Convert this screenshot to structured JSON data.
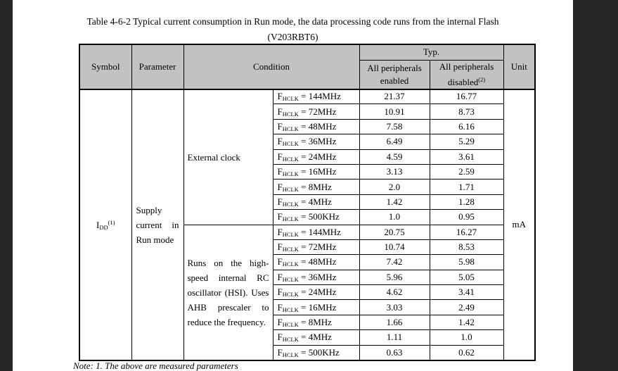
{
  "page": {
    "title_line1": "Table 4-6-2 Typical current consumption in Run mode, the data processing code runs from the internal Flash",
    "title_line2": "(V203RBT6)",
    "note": "Note: 1. The above are measured parameters"
  },
  "table": {
    "headers": {
      "symbol": "Symbol",
      "parameter": "Parameter",
      "condition": "Condition",
      "typ": "Typ.",
      "enabled_line1": "All peripherals",
      "enabled_line2": "enabled",
      "disabled_line1": "All peripherals",
      "disabled_line2": "disabled",
      "disabled_sup": "(2)",
      "unit": "Unit"
    },
    "symbol": {
      "base": "I",
      "sub": "DD",
      "sup": "(1)"
    },
    "parameter": "Supply current in Run mode",
    "unit": "mA",
    "fhclk": {
      "base": "F",
      "sub": "HCLK",
      "eq": " = "
    },
    "groups": [
      {
        "condition": "External clock",
        "rows": [
          {
            "freq": "144MHz",
            "enabled": "21.37",
            "disabled": "16.77"
          },
          {
            "freq": "72MHz",
            "enabled": "10.91",
            "disabled": "8.73"
          },
          {
            "freq": "48MHz",
            "enabled": "7.58",
            "disabled": "6.16"
          },
          {
            "freq": "36MHz",
            "enabled": "6.49",
            "disabled": "5.29"
          },
          {
            "freq": "24MHz",
            "enabled": "4.59",
            "disabled": "3.61"
          },
          {
            "freq": "16MHz",
            "enabled": "3.13",
            "disabled": "2.59"
          },
          {
            "freq": "8MHz",
            "enabled": "2.0",
            "disabled": "1.71"
          },
          {
            "freq": "4MHz",
            "enabled": "1.42",
            "disabled": "1.28"
          },
          {
            "freq": "500KHz",
            "enabled": "1.0",
            "disabled": "0.95"
          }
        ]
      },
      {
        "condition": "Runs on the high-speed internal RC oscillator (HSI). Uses AHB prescaler to reduce the frequency.",
        "rows": [
          {
            "freq": "144MHz",
            "enabled": "20.75",
            "disabled": "16.27"
          },
          {
            "freq": "72MHz",
            "enabled": "10.74",
            "disabled": "8.53"
          },
          {
            "freq": "48MHz",
            "enabled": "7.42",
            "disabled": "5.98"
          },
          {
            "freq": "36MHz",
            "enabled": "5.96",
            "disabled": "5.05"
          },
          {
            "freq": "24MHz",
            "enabled": "4.62",
            "disabled": "3.41"
          },
          {
            "freq": "16MHz",
            "enabled": "3.03",
            "disabled": "2.49"
          },
          {
            "freq": "8MHz",
            "enabled": "1.66",
            "disabled": "1.42"
          },
          {
            "freq": "4MHz",
            "enabled": "1.11",
            "disabled": "1.0"
          },
          {
            "freq": "500KHz",
            "enabled": "0.63",
            "disabled": "0.62"
          }
        ]
      }
    ]
  }
}
